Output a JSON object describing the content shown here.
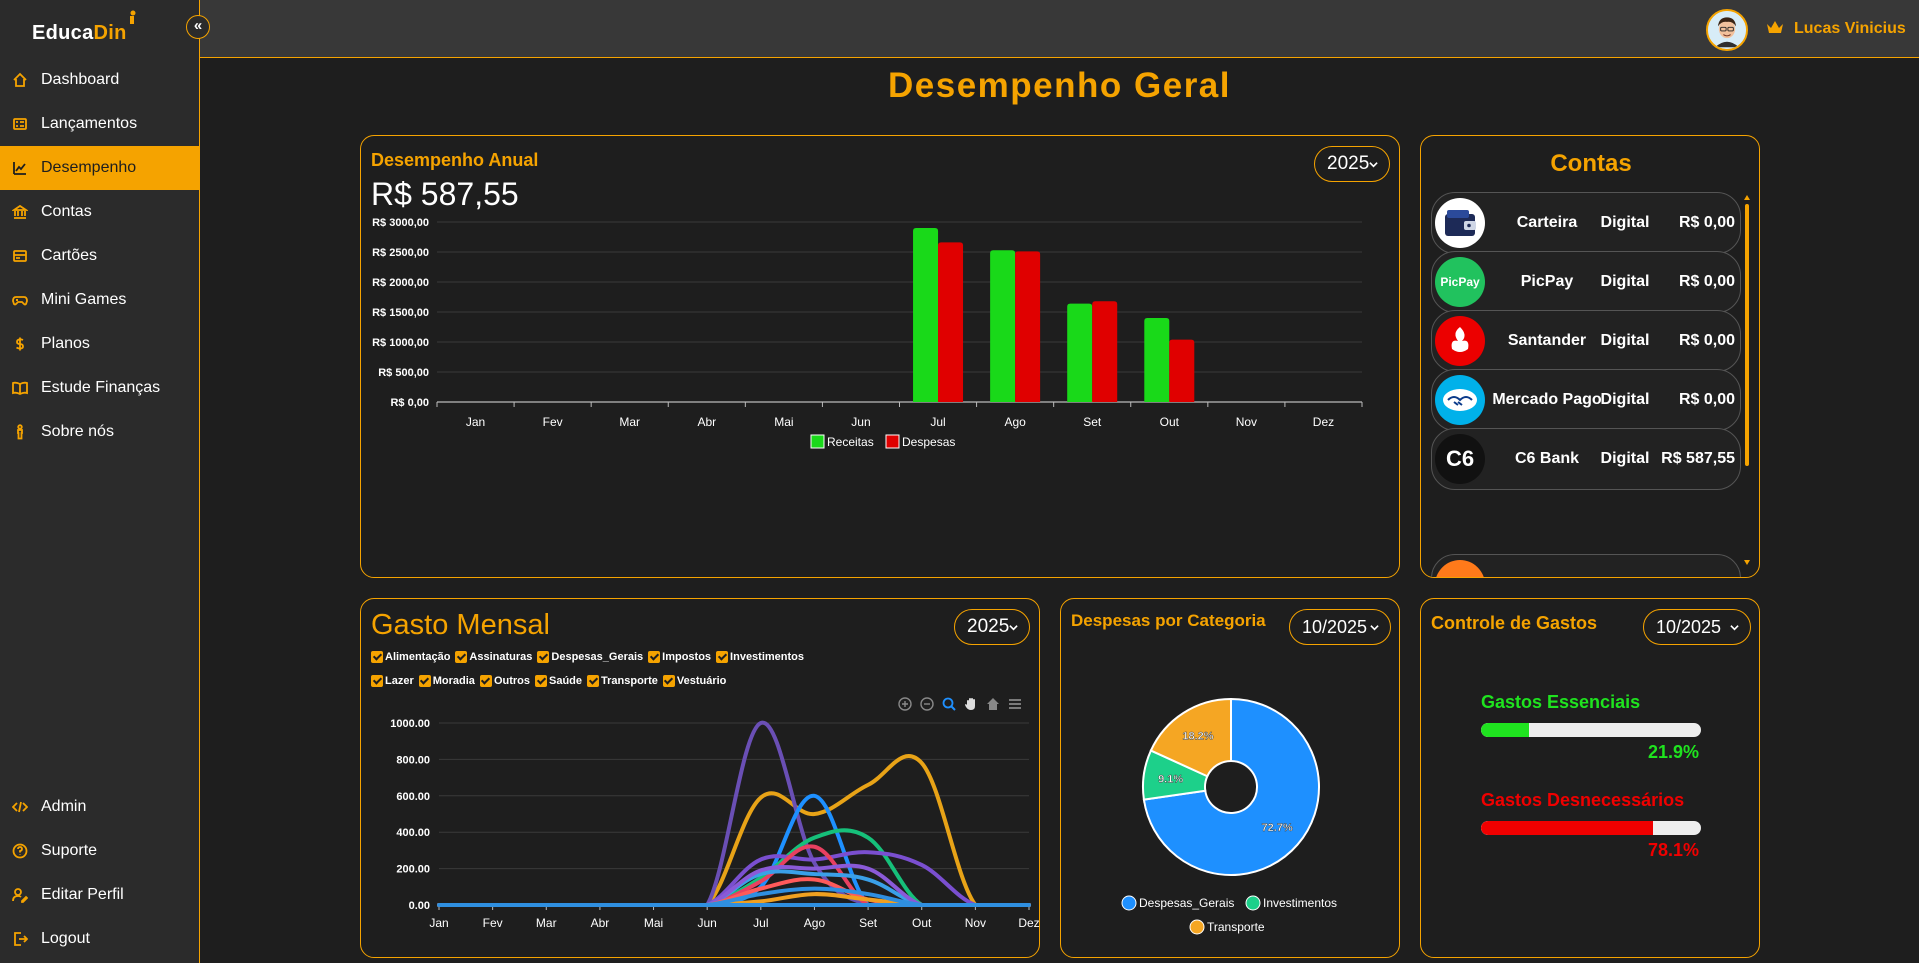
{
  "app": {
    "logo_part1": "Educa",
    "logo_part2": "Din"
  },
  "sidebar": {
    "items": [
      {
        "label": "Dashboard",
        "icon": "home-icon"
      },
      {
        "label": "Lançamentos",
        "icon": "list-icon"
      },
      {
        "label": "Desempenho",
        "icon": "trend-icon",
        "active": true
      },
      {
        "label": "Contas",
        "icon": "bank-icon"
      },
      {
        "label": "Cartões",
        "icon": "card-icon"
      },
      {
        "label": "Mini Games",
        "icon": "gamepad-icon"
      },
      {
        "label": "Planos",
        "icon": "dollar-icon"
      },
      {
        "label": "Estude Finanças",
        "icon": "book-icon"
      },
      {
        "label": "Sobre nós",
        "icon": "person-icon"
      }
    ],
    "bottom_items": [
      {
        "label": "Admin",
        "icon": "code-icon"
      },
      {
        "label": "Suporte",
        "icon": "help-icon"
      },
      {
        "label": "Editar Perfil",
        "icon": "user-edit-icon"
      },
      {
        "label": "Logout",
        "icon": "logout-icon"
      }
    ]
  },
  "header": {
    "username": "Lucas Vinicius"
  },
  "page": {
    "title": "Desempenho Geral"
  },
  "annual": {
    "title": "Desempenho Anual",
    "total": "R$ 587,55",
    "year": "2025"
  },
  "contas": {
    "title": "Contas",
    "accounts": [
      {
        "name": "Carteira",
        "type": "Digital",
        "balance": "R$ 0,00",
        "logo_color": "#ffffff"
      },
      {
        "name": "PicPay",
        "type": "Digital",
        "balance": "R$ 0,00",
        "logo_color": "#21c25e",
        "logo_text": "PicPay"
      },
      {
        "name": "Santander",
        "type": "Digital",
        "balance": "R$ 0,00",
        "logo_color": "#ec0000"
      },
      {
        "name": "Mercado Pago",
        "type": "Digital",
        "balance": "R$ 0,00",
        "logo_color": "#00b1ea"
      },
      {
        "name": "C6 Bank",
        "type": "Digital",
        "balance": "R$ 587,55",
        "logo_color": "#111111",
        "logo_text": "C6"
      }
    ]
  },
  "gasto": {
    "title": "Gasto Mensal",
    "year": "2025",
    "legend_row1": [
      "Alimentação",
      "Assinaturas",
      "Despesas_Gerais",
      "Impostos",
      "Investimentos"
    ],
    "legend_row2": [
      "Lazer",
      "Moradia",
      "Outros",
      "Saúde",
      "Transporte",
      "Vestuário"
    ]
  },
  "categoria": {
    "title": "Despesas por Categoria",
    "period": "10/2025",
    "legend": [
      "Despesas_Gerais",
      "Investimentos",
      "Transporte"
    ]
  },
  "controle": {
    "title": "Controle de Gastos",
    "period": "10/2025",
    "essenciais_label": "Gastos Essenciais",
    "essenciais_pct": "21.9%",
    "essenciais_value": 21.9,
    "essenciais_color": "#1fe31f",
    "desnecessarios_label": "Gastos Desnecessários",
    "desnecessarios_pct": "78.1%",
    "desnecessarios_value": 78.1,
    "desnecessarios_color": "#f00000"
  },
  "chart_data": [
    {
      "type": "bar",
      "categories": [
        "Jan",
        "Fev",
        "Mar",
        "Abr",
        "Mai",
        "Jun",
        "Jul",
        "Ago",
        "Set",
        "Out",
        "Nov",
        "Dez"
      ],
      "series": [
        {
          "name": "Receitas",
          "color": "#19d919",
          "values": [
            0,
            0,
            0,
            0,
            0,
            0,
            2900,
            2530,
            1640,
            1400,
            0,
            0
          ]
        },
        {
          "name": "Despesas",
          "color": "#e00000",
          "values": [
            0,
            0,
            0,
            0,
            0,
            0,
            2660,
            2510,
            1680,
            1040,
            0,
            0
          ]
        }
      ],
      "yticks": [
        "R$ 0,00",
        "R$ 500,00",
        "R$ 1000,00",
        "R$ 1500,00",
        "R$ 2000,00",
        "R$ 2500,00",
        "R$ 3000,00"
      ],
      "ylim": [
        0,
        3000
      ],
      "grid": true,
      "legend_position": "bottom"
    },
    {
      "type": "line",
      "categories": [
        "Jan",
        "Fev",
        "Mar",
        "Abr",
        "Mai",
        "Jun",
        "Jul",
        "Ago",
        "Set",
        "Out",
        "Nov",
        "Dez"
      ],
      "yticks": [
        "0.00",
        "200.00",
        "400.00",
        "600.00",
        "800.00",
        "1000.00"
      ],
      "ylim": [
        0,
        1000
      ],
      "series": [
        {
          "name": "Alimentação",
          "color": "#e8a317",
          "values": [
            0,
            0,
            0,
            0,
            0,
            0,
            590,
            500,
            660,
            780,
            0,
            0
          ]
        },
        {
          "name": "Assinaturas",
          "color": "#6a4fb5",
          "values": [
            0,
            0,
            0,
            0,
            0,
            0,
            1000,
            230,
            0,
            0,
            0,
            0
          ]
        },
        {
          "name": "Despesas_Gerais",
          "color": "#1e90ff",
          "values": [
            0,
            0,
            0,
            0,
            0,
            0,
            100,
            600,
            0,
            0,
            0,
            0
          ]
        },
        {
          "name": "Impostos",
          "color": "#16c07a",
          "values": [
            0,
            0,
            0,
            0,
            0,
            0,
            150,
            370,
            370,
            0,
            0,
            0
          ]
        },
        {
          "name": "Investimentos",
          "color": "#7a4fd0",
          "values": [
            0,
            0,
            0,
            0,
            0,
            0,
            250,
            250,
            290,
            220,
            0,
            0
          ]
        },
        {
          "name": "Lazer",
          "color": "#e84060",
          "values": [
            0,
            0,
            0,
            0,
            0,
            0,
            130,
            320,
            0,
            0,
            0,
            0
          ]
        },
        {
          "name": "Moradia",
          "color": "#3aa0e8",
          "values": [
            0,
            0,
            0,
            0,
            0,
            0,
            170,
            170,
            140,
            0,
            0,
            0
          ]
        },
        {
          "name": "Outros",
          "color": "#8a5ad8",
          "values": [
            0,
            0,
            0,
            0,
            0,
            0,
            190,
            200,
            200,
            0,
            0,
            0
          ]
        },
        {
          "name": "Saúde",
          "color": "#ff5a5a",
          "values": [
            0,
            0,
            0,
            0,
            0,
            0,
            90,
            140,
            30,
            0,
            0,
            0
          ]
        },
        {
          "name": "Transporte",
          "color": "#f0a020",
          "values": [
            0,
            0,
            0,
            0,
            0,
            0,
            20,
            60,
            30,
            0,
            0,
            0
          ]
        },
        {
          "name": "Vestuário",
          "color": "#2f8fe0",
          "values": [
            0,
            0,
            0,
            0,
            0,
            0,
            60,
            90,
            60,
            0,
            0,
            0
          ]
        }
      ]
    },
    {
      "type": "pie",
      "slices": [
        {
          "name": "Despesas_Gerais",
          "value": 72.7,
          "label": "72.7%",
          "color": "#1e90ff"
        },
        {
          "name": "Investimentos",
          "value": 9.1,
          "label": "9.1%",
          "color": "#1dd08a"
        },
        {
          "name": "Transporte",
          "value": 18.2,
          "label": "18.2%",
          "color": "#f5a623"
        }
      ]
    }
  ]
}
